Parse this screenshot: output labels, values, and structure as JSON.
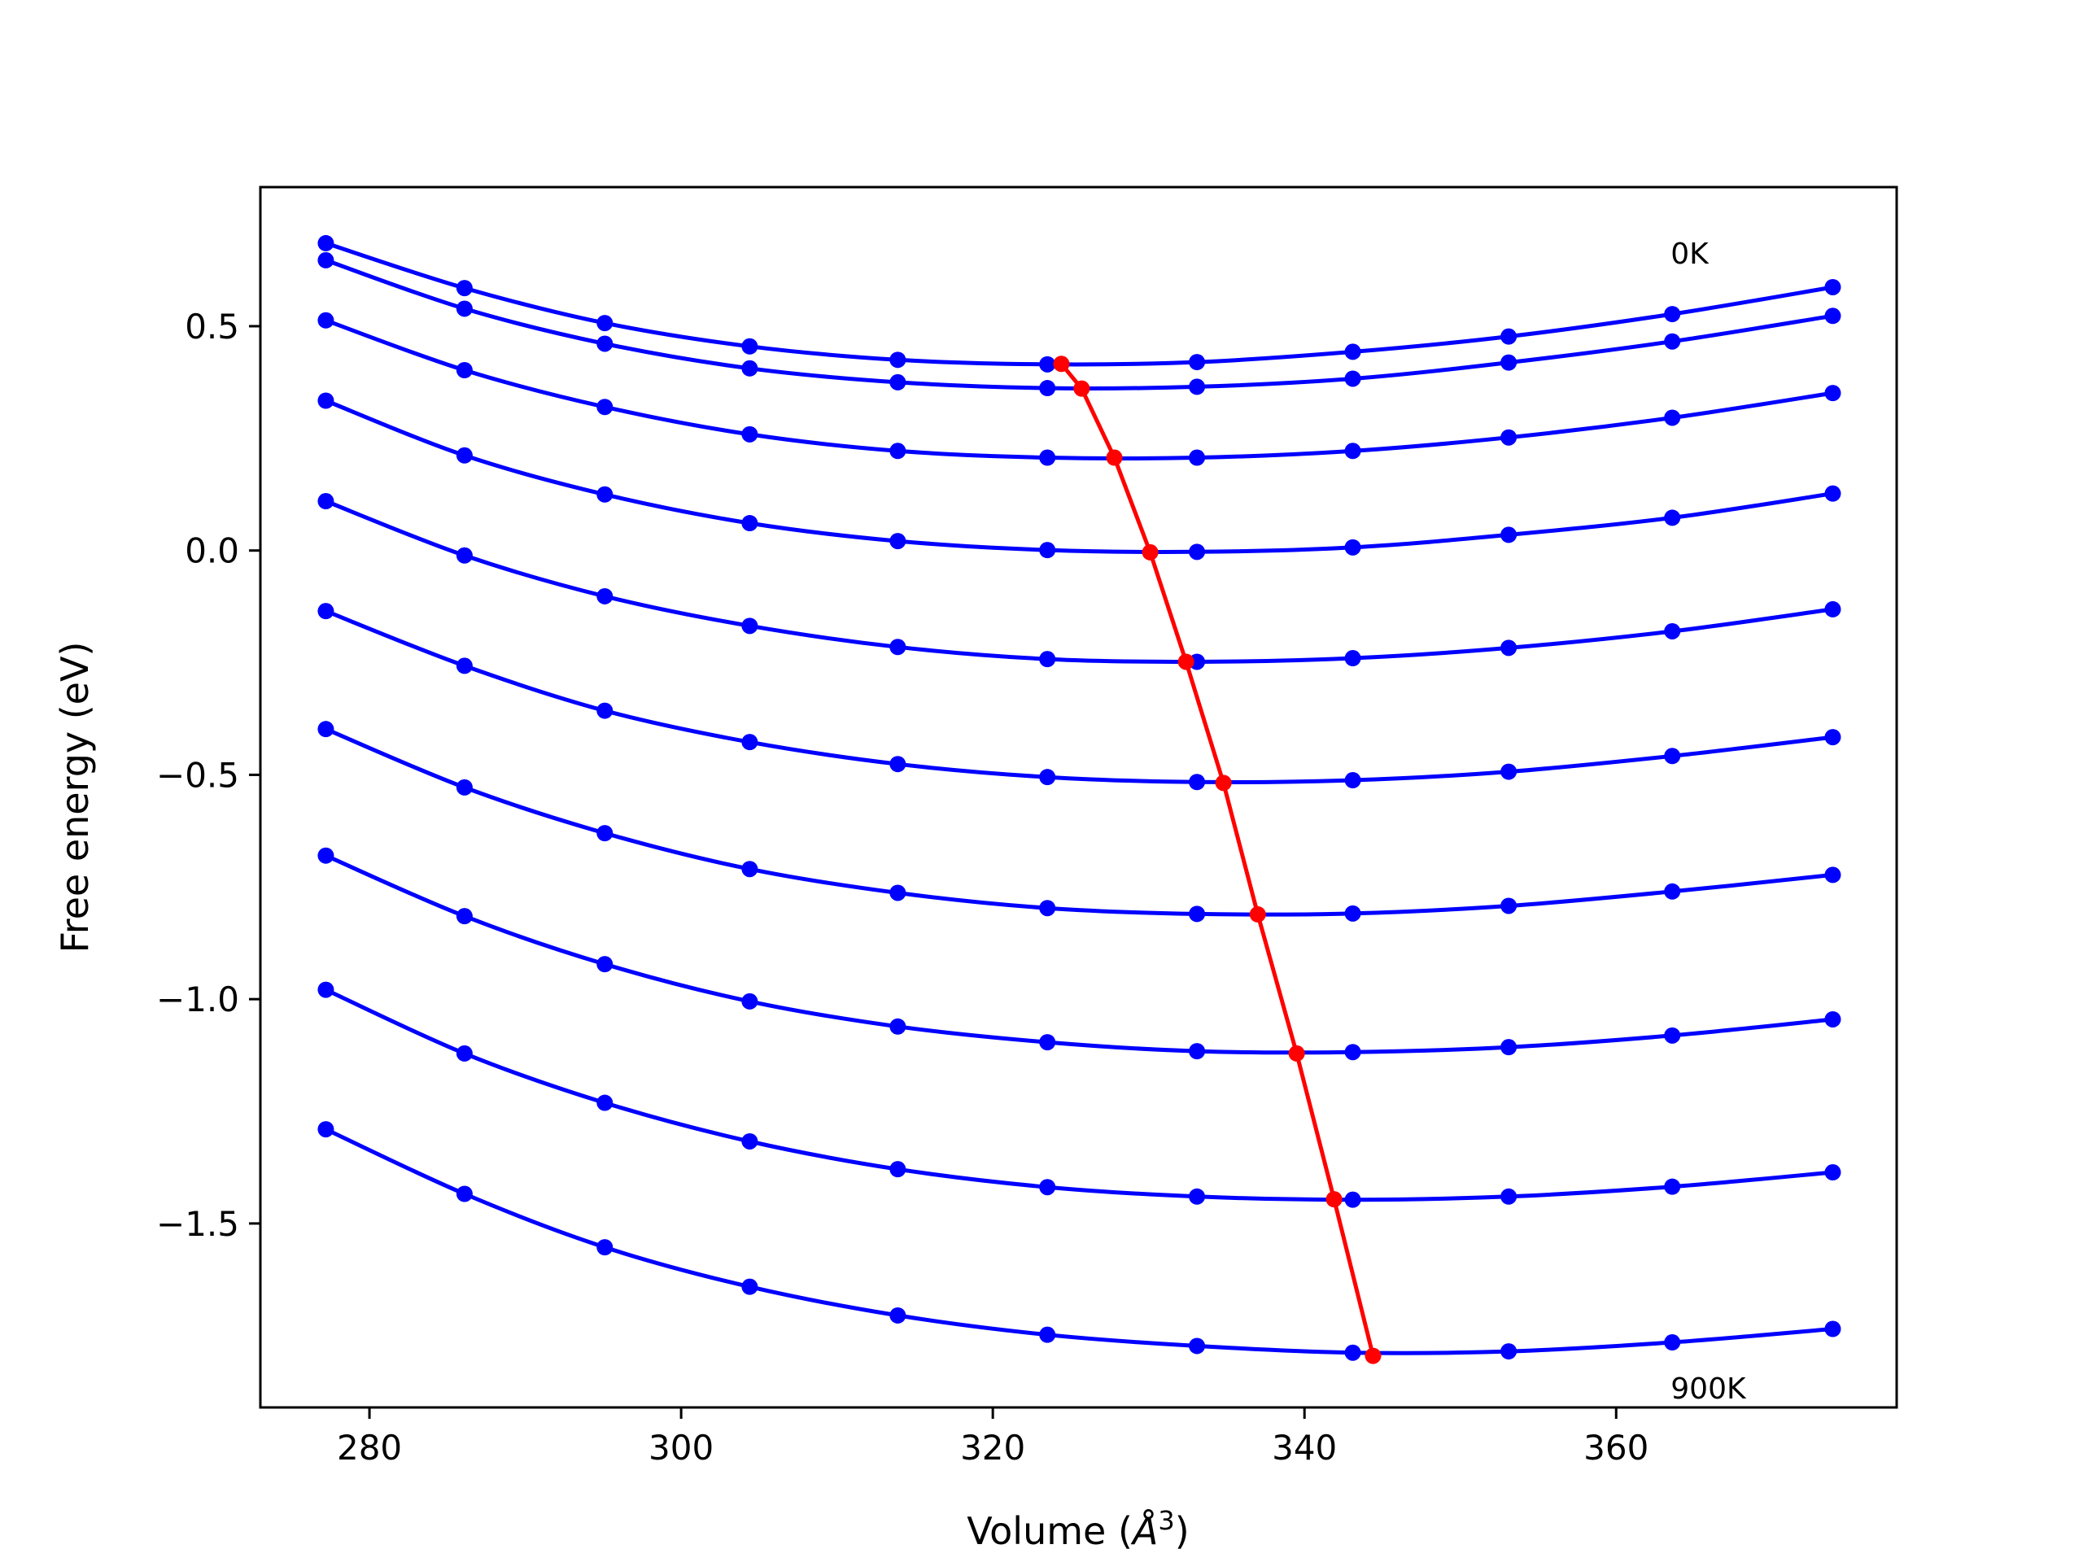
{
  "chart_data": {
    "type": "line",
    "xlabel": "Volume",
    "xlabel_unit": "Å",
    "xlabel_sup": "3",
    "ylabel": "Free energy (eV)",
    "xlim": [
      273,
      378
    ],
    "ylim": [
      -1.91,
      0.81
    ],
    "xticks": [
      280,
      300,
      320,
      340,
      360
    ],
    "xtick_labels": [
      "280",
      "300",
      "320",
      "340",
      "360"
    ],
    "yticks": [
      0.5,
      0.0,
      -0.5,
      -1.0,
      -1.5
    ],
    "ytick_labels": [
      "0.5",
      "0.0",
      "−0.5",
      "−1.0",
      "−1.5"
    ],
    "grid": false,
    "x": [
      277.2,
      286.1,
      295.1,
      304.4,
      313.9,
      323.5,
      333.1,
      343.1,
      353.1,
      363.6,
      373.9
    ],
    "series": [
      {
        "values": [
          0.685,
          0.585,
          0.507,
          0.455,
          0.425,
          0.415,
          0.42,
          0.443,
          0.477,
          0.527,
          0.587
        ]
      },
      {
        "values": [
          0.647,
          0.539,
          0.461,
          0.406,
          0.375,
          0.362,
          0.365,
          0.383,
          0.419,
          0.466,
          0.523
        ]
      },
      {
        "values": [
          0.513,
          0.402,
          0.32,
          0.259,
          0.222,
          0.207,
          0.207,
          0.222,
          0.252,
          0.296,
          0.351
        ]
      },
      {
        "values": [
          0.334,
          0.212,
          0.125,
          0.061,
          0.021,
          0.001,
          -0.003,
          0.007,
          0.035,
          0.073,
          0.127
        ]
      },
      {
        "values": [
          0.11,
          -0.011,
          -0.102,
          -0.168,
          -0.215,
          -0.242,
          -0.248,
          -0.24,
          -0.217,
          -0.18,
          -0.131
        ]
      },
      {
        "values": [
          -0.135,
          -0.257,
          -0.357,
          -0.427,
          -0.476,
          -0.505,
          -0.516,
          -0.512,
          -0.493,
          -0.458,
          -0.416
        ]
      },
      {
        "values": [
          -0.398,
          -0.528,
          -0.63,
          -0.71,
          -0.763,
          -0.797,
          -0.81,
          -0.809,
          -0.792,
          -0.76,
          -0.723
        ]
      },
      {
        "values": [
          -0.68,
          -0.815,
          -0.922,
          -1.005,
          -1.061,
          -1.096,
          -1.116,
          -1.118,
          -1.107,
          -1.081,
          -1.045
        ]
      },
      {
        "values": [
          -0.979,
          -1.121,
          -1.231,
          -1.317,
          -1.379,
          -1.419,
          -1.44,
          -1.447,
          -1.44,
          -1.418,
          -1.386
        ]
      },
      {
        "values": [
          -1.29,
          -1.434,
          -1.553,
          -1.641,
          -1.705,
          -1.748,
          -1.773,
          -1.788,
          -1.785,
          -1.765,
          -1.735
        ]
      }
    ],
    "minimum_line": {
      "x": [
        324.4,
        325.7,
        327.8,
        330.1,
        332.4,
        334.8,
        337.0,
        339.5,
        341.9,
        344.4
      ],
      "values": [
        0.416,
        0.361,
        0.207,
        -0.004,
        -0.248,
        -0.518,
        -0.811,
        -1.121,
        -1.446,
        -1.795
      ]
    },
    "annotations": [
      {
        "text": "0K",
        "x": 363.5,
        "y": 0.64
      },
      {
        "text": "900K",
        "x": 363.5,
        "y": -1.89
      }
    ],
    "colors": {
      "curves": "#0000ff",
      "minimum_line": "#ff0000",
      "axes": "#000000",
      "background": "#ffffff"
    }
  }
}
